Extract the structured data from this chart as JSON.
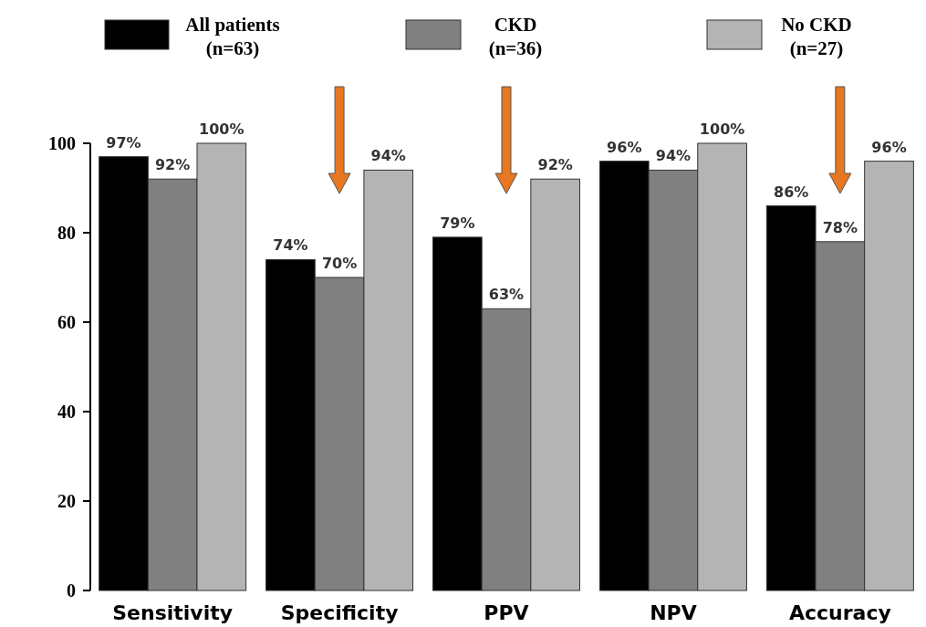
{
  "chart_data": {
    "type": "bar",
    "categories": [
      "Sensitivity",
      "Specificity",
      "PPV",
      "NPV",
      "Accuracy"
    ],
    "series": [
      {
        "name": "All patients (n=63)",
        "color": "#000000",
        "values": [
          97,
          74,
          79,
          96,
          86
        ],
        "value_labels": [
          "97%",
          "74%",
          "79%",
          "96%",
          "86%"
        ]
      },
      {
        "name": "CKD (n=36)",
        "color": "#808080",
        "values": [
          92,
          70,
          63,
          94,
          78
        ],
        "value_labels": [
          "92%",
          "70%",
          "63%",
          "94%",
          "78%"
        ]
      },
      {
        "name": "No CKD (n=27)",
        "color": "#b4b4b4",
        "values": [
          100,
          94,
          92,
          100,
          96
        ],
        "value_labels": [
          "100%",
          "94%",
          "92%",
          "100%",
          "96%"
        ]
      }
    ],
    "ylim": [
      0,
      100
    ],
    "yticks": [
      0,
      20,
      40,
      60,
      80,
      100
    ],
    "grid": false,
    "legend": "top"
  }
}
